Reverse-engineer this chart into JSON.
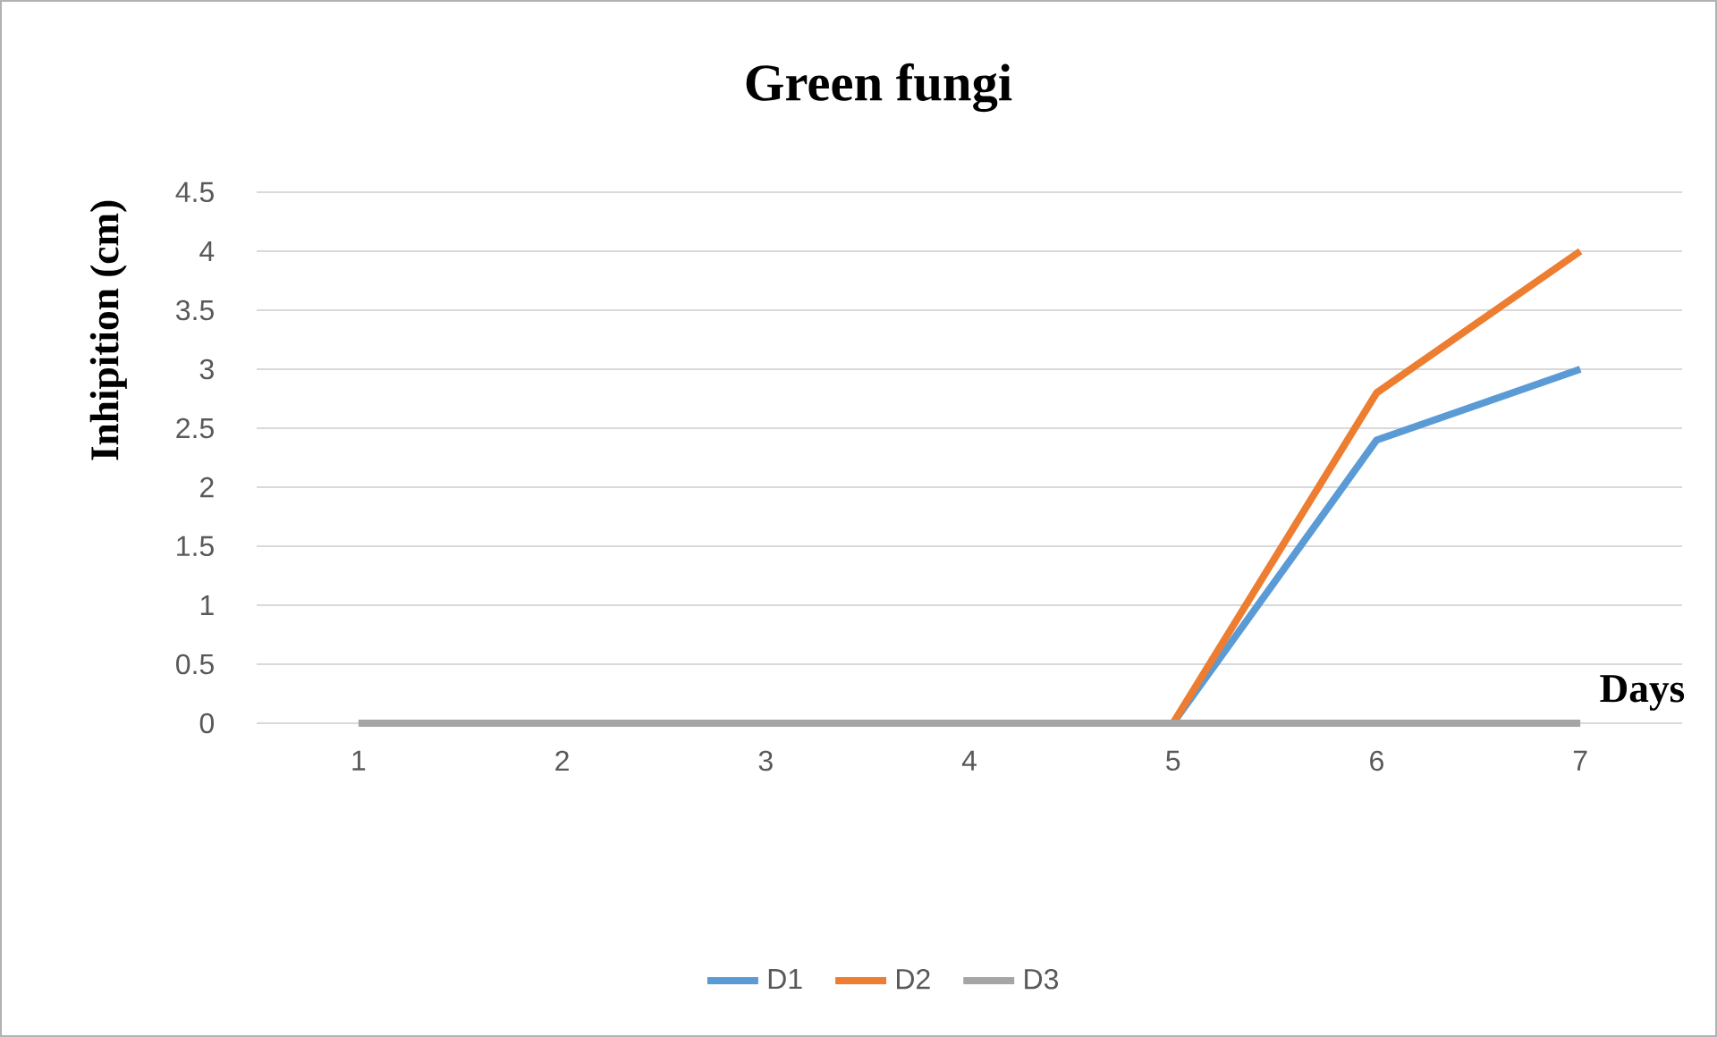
{
  "chart_data": {
    "type": "line",
    "title": "Green fungi",
    "xlabel": "Days",
    "ylabel": "Inhipition (cm)",
    "categories": [
      "1",
      "2",
      "3",
      "4",
      "5",
      "6",
      "7"
    ],
    "series": [
      {
        "name": "D1",
        "color": "#5b9bd5",
        "values": [
          null,
          null,
          null,
          null,
          0,
          2.4,
          3
        ]
      },
      {
        "name": "D2",
        "color": "#ed7d31",
        "values": [
          null,
          null,
          null,
          null,
          0,
          2.8,
          4
        ]
      },
      {
        "name": "D3",
        "color": "#a5a5a5",
        "values": [
          0,
          0,
          0,
          0,
          0,
          0,
          0
        ]
      }
    ],
    "ylim": [
      0,
      4.5
    ],
    "yticks": [
      0,
      0.5,
      1,
      1.5,
      2,
      2.5,
      3,
      3.5,
      4,
      4.5
    ],
    "grid": "y",
    "legend": "bottom"
  }
}
